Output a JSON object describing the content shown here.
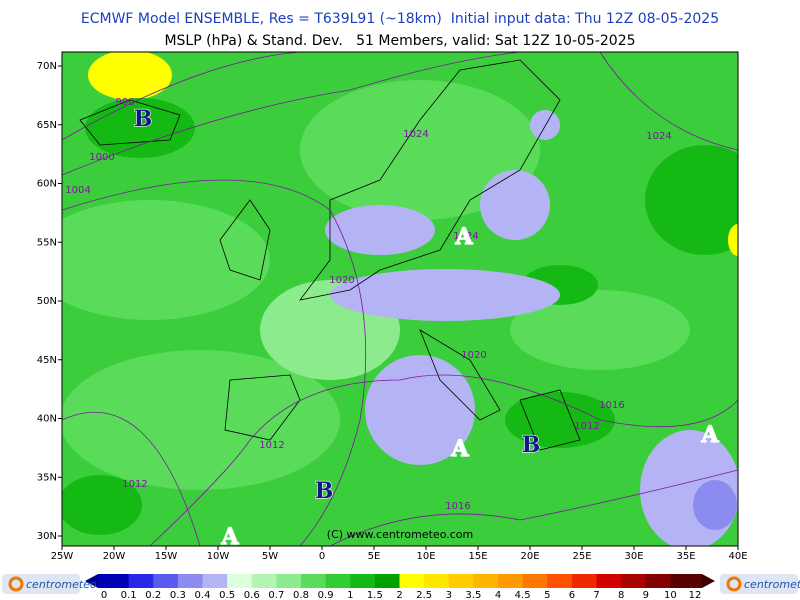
{
  "header": {
    "title": "ECMWF Model ENSEMBLE, Res = T639L91 (~18km)  Initial input data: Thu 12Z 08-05-2025",
    "subtitle": "MSLP (hPa) & Stand. Dev.   51 Members, valid: Sat 12Z 10-05-2025"
  },
  "map": {
    "lat_labels": [
      "70N",
      "65N",
      "60N",
      "55N",
      "50N",
      "45N",
      "40N",
      "35N",
      "30N"
    ],
    "lon_labels": [
      "25W",
      "20W",
      "15W",
      "10W",
      "5W",
      "0",
      "5E",
      "10E",
      "15E",
      "20E",
      "25E",
      "30E",
      "35E",
      "40E"
    ],
    "isobar_labels": [
      "996",
      "1000",
      "1004",
      "1024",
      "1024",
      "1024",
      "1020",
      "1020",
      "1012",
      "1012",
      "1016",
      "1012",
      "1016"
    ],
    "pressure_centers": [
      "B",
      "B",
      "B",
      "A",
      "A",
      "A",
      "A"
    ],
    "copyright": "(C) www.centrometeo.com"
  },
  "legend": {
    "labels": [
      "0",
      "0.1",
      "0.2",
      "0.3",
      "0.4",
      "0.5",
      "0.6",
      "0.7",
      "0.8",
      "0.9",
      "1",
      "1.5",
      "2",
      "2.5",
      "3",
      "3.5",
      "4",
      "4.5",
      "5",
      "6",
      "7",
      "8",
      "9",
      "10",
      "12"
    ],
    "colors": [
      "#0000b4",
      "#2828e6",
      "#5a5af0",
      "#8c8cf0",
      "#b4b4f5",
      "#dcffdc",
      "#b4f5b4",
      "#8ceb8c",
      "#5adc5a",
      "#32cd32",
      "#14b914",
      "#00a000",
      "#ffff00",
      "#ffe600",
      "#ffcd00",
      "#ffb400",
      "#ff9b00",
      "#ff7800",
      "#ff5000",
      "#f02800",
      "#d20000",
      "#aa0000",
      "#820000",
      "#5a0000"
    ]
  },
  "logos": [
    "centrometeo",
    "centrometeo"
  ]
}
